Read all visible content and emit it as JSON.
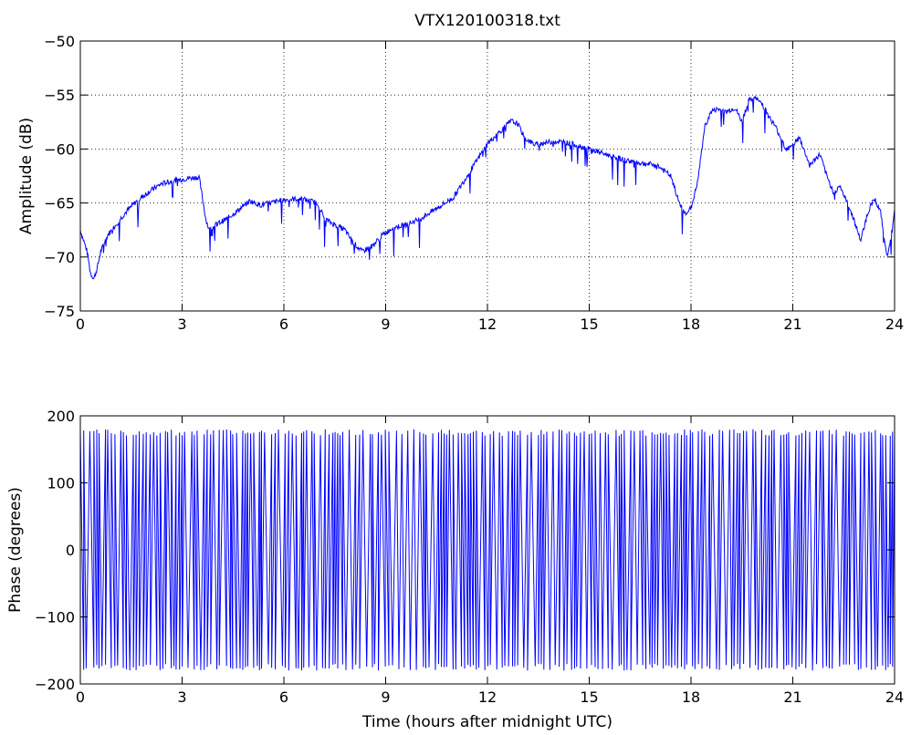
{
  "chart_data": [
    {
      "type": "line",
      "title": "VTX120100318.txt",
      "xlabel": "",
      "ylabel": "Amplitude (dB)",
      "xlim": [
        0,
        24
      ],
      "ylim": [
        -75,
        -50
      ],
      "xticks": [
        0,
        3,
        6,
        9,
        12,
        15,
        18,
        21,
        24
      ],
      "yticks": [
        -75,
        -70,
        -65,
        -60,
        -55,
        -50
      ],
      "xtick_labels": [
        "0",
        "3",
        "6",
        "9",
        "12",
        "15",
        "18",
        "21",
        "24"
      ],
      "ytick_labels": [
        "−75",
        "−70",
        "−65",
        "−60",
        "−55",
        "−50"
      ],
      "grid": true,
      "grid_style": "dotted",
      "line_color": "#0000ff",
      "series": [
        {
          "x": [
            0,
            0.1,
            0.2,
            0.3,
            0.4,
            0.5,
            0.6,
            0.8,
            1.0,
            1.3,
            1.6,
            2.0,
            2.4,
            2.8,
            3.2,
            3.5,
            3.7,
            3.8,
            4.0,
            4.3,
            4.6,
            5.0,
            5.3,
            5.6,
            6.0,
            6.5,
            7.0,
            7.2,
            7.5,
            7.8,
            8.0,
            8.3,
            8.6,
            8.9,
            9.2,
            9.6,
            10.0,
            10.5,
            11.0,
            11.5,
            12.0,
            12.4,
            12.7,
            12.9,
            13.1,
            13.4,
            13.7,
            14.0,
            14.3,
            14.6,
            15.0,
            15.5,
            16.0,
            16.5,
            17.0,
            17.4,
            17.6,
            17.8,
            18.0,
            18.2,
            18.4,
            18.6,
            18.8,
            19.0,
            19.3,
            19.5,
            19.7,
            19.9,
            20.1,
            20.3,
            20.5,
            20.8,
            21.0,
            21.2,
            21.5,
            21.8,
            22.0,
            22.2,
            22.4,
            22.6,
            22.8,
            23.0,
            23.2,
            23.4,
            23.6,
            23.7,
            23.8,
            24.0
          ],
          "y": [
            -67.5,
            -68.5,
            -69.5,
            -71.5,
            -72.0,
            -71.0,
            -69.5,
            -68.0,
            -67.2,
            -66.0,
            -65.0,
            -64.0,
            -63.2,
            -62.9,
            -62.7,
            -62.6,
            -66.5,
            -67.5,
            -67.0,
            -66.5,
            -65.8,
            -64.8,
            -65.2,
            -65.0,
            -64.7,
            -64.6,
            -65.0,
            -66.5,
            -67.0,
            -67.5,
            -68.5,
            -69.5,
            -69.0,
            -68.0,
            -67.3,
            -67.0,
            -66.5,
            -65.5,
            -64.5,
            -62.0,
            -59.5,
            -58.3,
            -57.4,
            -57.7,
            -59.0,
            -59.6,
            -59.4,
            -59.3,
            -59.4,
            -59.6,
            -60.0,
            -60.5,
            -61.0,
            -61.3,
            -61.5,
            -62.5,
            -64.5,
            -66.0,
            -65.5,
            -63.0,
            -58.0,
            -56.5,
            -56.3,
            -56.6,
            -56.2,
            -57.5,
            -55.5,
            -55.3,
            -55.8,
            -57.0,
            -58.0,
            -60.0,
            -59.5,
            -59.0,
            -61.5,
            -60.5,
            -62.5,
            -64.0,
            -63.5,
            -65.0,
            -66.5,
            -68.5,
            -66.0,
            -64.5,
            -66.0,
            -68.5,
            -70.0,
            -65.8
          ]
        }
      ]
    },
    {
      "type": "line",
      "title": "",
      "xlabel": "Time (hours after midnight UTC)",
      "ylabel": "Phase (degrees)",
      "xlim": [
        0,
        24
      ],
      "ylim": [
        -200,
        200
      ],
      "xticks": [
        0,
        3,
        6,
        9,
        12,
        15,
        18,
        21,
        24
      ],
      "yticks": [
        -200,
        -100,
        0,
        100,
        200
      ],
      "xtick_labels": [
        "0",
        "3",
        "6",
        "9",
        "12",
        "15",
        "18",
        "21",
        "24"
      ],
      "ytick_labels": [
        "−200",
        "−100",
        "0",
        "100",
        "200"
      ],
      "grid": false,
      "line_color": "#0000ff",
      "series": [
        {
          "pattern": "sawtooth wrap between -180 and 180 degrees",
          "x": [
            0,
            24
          ],
          "y_range": [
            -180,
            180
          ]
        }
      ]
    }
  ]
}
